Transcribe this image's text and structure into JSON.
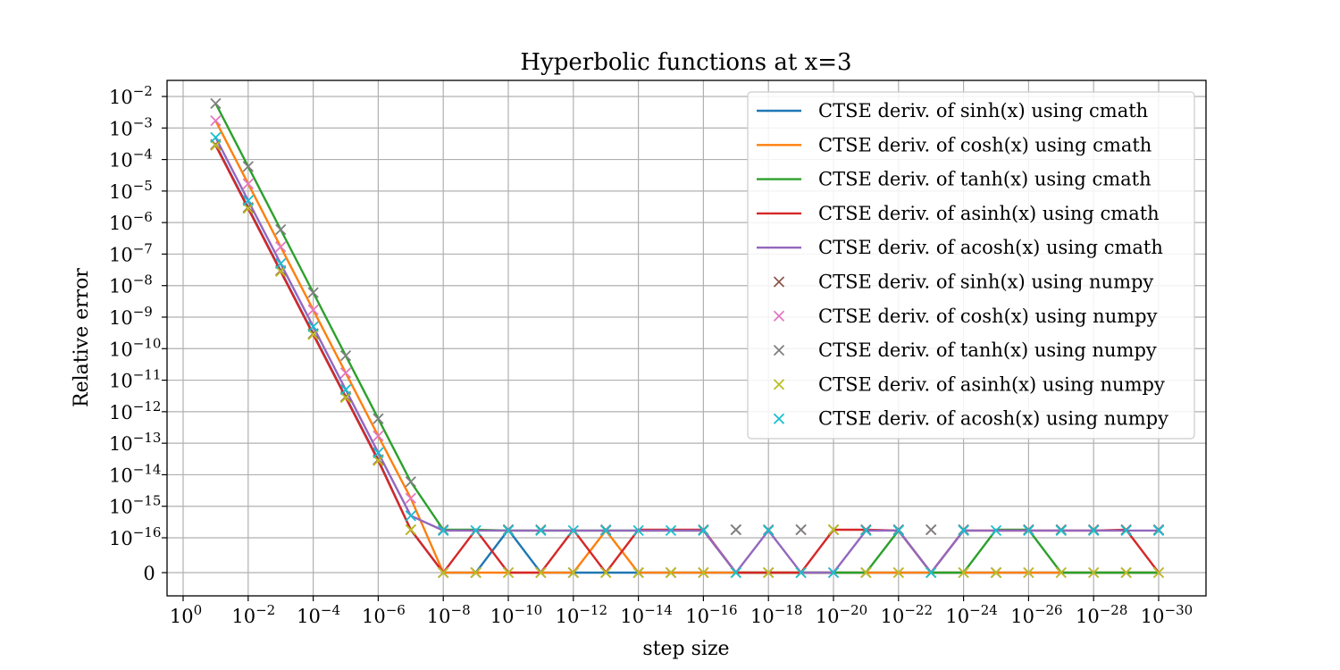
{
  "chart_data": {
    "type": "line",
    "title": "Hyperbolic functions at x=3",
    "xlabel": "step size",
    "ylabel": "Relative error",
    "x_scale": "log",
    "y_scale": "symlog",
    "x": [
      0.1,
      0.01,
      0.001,
      0.0001,
      1e-05,
      1e-06,
      1e-07,
      1e-08,
      1e-09,
      1e-10,
      1e-11,
      1e-12,
      1e-13,
      1e-14,
      1e-15,
      1e-16,
      1e-17,
      1e-18,
      1e-19,
      1e-20,
      1e-21,
      1e-22,
      1e-23,
      1e-24,
      1e-25,
      1e-26,
      1e-27,
      1e-28,
      1e-29,
      1e-30
    ],
    "x_ticks": [
      {
        "base": "10",
        "exp": "0"
      },
      {
        "base": "10",
        "exp": "−2"
      },
      {
        "base": "10",
        "exp": "−4"
      },
      {
        "base": "10",
        "exp": "−6"
      },
      {
        "base": "10",
        "exp": "−8"
      },
      {
        "base": "10",
        "exp": "−10"
      },
      {
        "base": "10",
        "exp": "−12"
      },
      {
        "base": "10",
        "exp": "−14"
      },
      {
        "base": "10",
        "exp": "−16"
      },
      {
        "base": "10",
        "exp": "−18"
      },
      {
        "base": "10",
        "exp": "−20"
      },
      {
        "base": "10",
        "exp": "−22"
      },
      {
        "base": "10",
        "exp": "−24"
      },
      {
        "base": "10",
        "exp": "−26"
      },
      {
        "base": "10",
        "exp": "−28"
      },
      {
        "base": "10",
        "exp": "−30"
      }
    ],
    "y_ticks": [
      {
        "base": "10",
        "exp": "−2"
      },
      {
        "base": "10",
        "exp": "−3"
      },
      {
        "base": "10",
        "exp": "−4"
      },
      {
        "base": "10",
        "exp": "−5"
      },
      {
        "base": "10",
        "exp": "−6"
      },
      {
        "base": "10",
        "exp": "−7"
      },
      {
        "base": "10",
        "exp": "−8"
      },
      {
        "base": "10",
        "exp": "−9"
      },
      {
        "base": "10",
        "exp": "−10"
      },
      {
        "base": "10",
        "exp": "−11"
      },
      {
        "base": "10",
        "exp": "−12"
      },
      {
        "base": "10",
        "exp": "−13"
      },
      {
        "base": "10",
        "exp": "−14"
      },
      {
        "base": "10",
        "exp": "−15"
      },
      {
        "base": "10",
        "exp": "−16"
      },
      {
        "base": "0",
        "exp": ""
      }
    ],
    "grid": true,
    "legend_position": "top-right",
    "series": [
      {
        "name": "CTSE deriv. of sinh(x) using cmath",
        "style": "line",
        "color": "#1f77b4",
        "y": [
          0.0003,
          3e-06,
          3e-08,
          3e-10,
          3e-12,
          3e-14,
          1.8e-16,
          0,
          0,
          1.8e-16,
          0,
          0,
          0,
          0,
          0,
          0,
          0,
          0,
          0,
          0,
          0,
          0,
          0,
          0,
          0,
          0,
          0,
          0,
          0,
          0
        ]
      },
      {
        "name": "CTSE deriv. of cosh(x) using cmath",
        "style": "line",
        "color": "#ff7f0e",
        "y": [
          0.0017,
          1.7e-05,
          1.7e-07,
          1.7e-09,
          1.7e-11,
          1.7e-13,
          1.8e-15,
          0,
          0,
          0,
          0,
          0,
          1.7e-16,
          0,
          0,
          0,
          0,
          0,
          0,
          0,
          0,
          0,
          0,
          0,
          0,
          0,
          0,
          0,
          0,
          0
        ]
      },
      {
        "name": "CTSE deriv. of tanh(x) using cmath",
        "style": "line",
        "color": "#2ca02c",
        "y": [
          0.006,
          6e-05,
          6e-07,
          6e-09,
          6e-11,
          6e-13,
          6e-15,
          1.8e-16,
          1.8e-16,
          1.7e-16,
          1.7e-16,
          1.7e-16,
          1.7e-16,
          1.7e-16,
          1.7e-16,
          1.7e-16,
          0,
          0,
          0,
          0,
          0,
          1.7e-16,
          0,
          0,
          1.8e-16,
          1.8e-16,
          0,
          0,
          0,
          0
        ]
      },
      {
        "name": "CTSE deriv. of asinh(x) using cmath",
        "style": "line",
        "color": "#d62728",
        "y": [
          0.00028,
          2.8e-06,
          2.8e-08,
          2.8e-10,
          2.8e-12,
          2.8e-14,
          1.8e-16,
          0,
          1.8e-16,
          0,
          0,
          1.8e-16,
          0,
          1.8e-16,
          1.8e-16,
          1.8e-16,
          0,
          0,
          0,
          1.8e-16,
          1.8e-16,
          1.7e-16,
          0,
          1.7e-16,
          1.7e-16,
          1.7e-16,
          1.7e-16,
          1.7e-16,
          1.8e-16,
          0
        ]
      },
      {
        "name": "CTSE deriv. of acosh(x) using cmath",
        "style": "line",
        "color": "#9467bd",
        "y": [
          0.0005,
          5e-06,
          5e-08,
          5e-10,
          5e-12,
          5e-14,
          5e-16,
          1.7e-16,
          1.7e-16,
          1.7e-16,
          1.7e-16,
          1.7e-16,
          1.7e-16,
          1.7e-16,
          1.7e-16,
          1.7e-16,
          0,
          1.7e-16,
          0,
          0,
          1.7e-16,
          1.7e-16,
          0,
          1.7e-16,
          1.7e-16,
          1.7e-16,
          1.7e-16,
          1.7e-16,
          1.7e-16,
          1.7e-16
        ]
      },
      {
        "name": "CTSE deriv. of sinh(x) using numpy",
        "style": "marker",
        "color": "#8c564b",
        "y": [
          0.0003,
          3e-06,
          3e-08,
          3e-10,
          3e-12,
          3e-14,
          1.8e-16,
          0,
          0,
          1.8e-16,
          0,
          0,
          0,
          0,
          0,
          0,
          1.8e-16,
          0,
          1.8e-16,
          1.8e-16,
          1.8e-16,
          1.8e-16,
          1.8e-16,
          1.8e-16,
          0,
          1.8e-16,
          1.8e-16,
          1.8e-16,
          1.8e-16,
          1.8e-16
        ]
      },
      {
        "name": "CTSE deriv. of cosh(x) using numpy",
        "style": "marker",
        "color": "#e377c2",
        "y": [
          0.0017,
          1.7e-05,
          1.7e-07,
          1.7e-09,
          1.7e-11,
          1.7e-13,
          1.8e-15,
          0,
          0,
          0,
          0,
          0,
          1.7e-16,
          0,
          0,
          0,
          0,
          0,
          0,
          0,
          0,
          0,
          0,
          0,
          0,
          0,
          0,
          0,
          0,
          0
        ]
      },
      {
        "name": "CTSE deriv. of tanh(x) using numpy",
        "style": "marker",
        "color": "#7f7f7f",
        "y": [
          0.006,
          6e-05,
          6e-07,
          6e-09,
          6e-11,
          6e-13,
          6e-15,
          1.8e-16,
          0,
          1.8e-16,
          1.8e-16,
          0,
          1.8e-16,
          0,
          0,
          1.8e-16,
          1.8e-16,
          1.8e-16,
          1.8e-16,
          1.8e-16,
          0,
          1.8e-16,
          1.8e-16,
          1.8e-16,
          0,
          1.8e-16,
          1.8e-16,
          1.8e-16,
          0,
          1.8e-16
        ]
      },
      {
        "name": "CTSE deriv. of asinh(x) using numpy",
        "style": "marker",
        "color": "#bcbd22",
        "y": [
          0.00028,
          2.8e-06,
          2.8e-08,
          2.8e-10,
          2.8e-12,
          2.8e-14,
          1.8e-16,
          0,
          0,
          0,
          0,
          0,
          0,
          0,
          0,
          0,
          0,
          0,
          0,
          1.8e-16,
          0,
          0,
          0,
          0,
          0,
          0,
          0,
          0,
          0,
          0
        ]
      },
      {
        "name": "CTSE deriv. of acosh(x) using numpy",
        "style": "marker",
        "color": "#17becf",
        "y": [
          0.0005,
          5e-06,
          5e-08,
          5e-10,
          5e-12,
          5e-14,
          5e-16,
          1.7e-16,
          1.7e-16,
          1.7e-16,
          1.7e-16,
          1.7e-16,
          1.7e-16,
          1.7e-16,
          1.7e-16,
          1.7e-16,
          0,
          1.7e-16,
          0,
          0,
          1.7e-16,
          1.7e-16,
          0,
          1.7e-16,
          1.7e-16,
          1.7e-16,
          1.7e-16,
          1.7e-16,
          1.7e-16,
          1.7e-16
        ]
      }
    ]
  }
}
